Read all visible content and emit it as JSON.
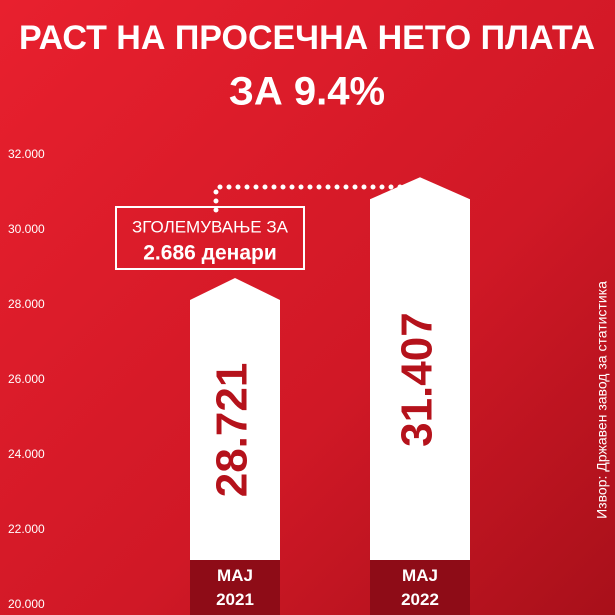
{
  "chart_data": {
    "type": "bar",
    "title": "РАСТ НА ПРОСЕЧНА НЕТО ПЛАТА",
    "subtitle": "ЗА 9.4%",
    "categories": [
      "МАЈ 2021",
      "МАЈ 2022"
    ],
    "values": [
      28721,
      31407
    ],
    "value_labels": [
      "28.721",
      "31.407"
    ],
    "color": "#ffffff",
    "label_color": "#b5121b",
    "ylim": [
      20000,
      32000
    ],
    "yticks": [
      {
        "value": 20000,
        "label": "20.000"
      },
      {
        "value": 22000,
        "label": "22.000"
      },
      {
        "value": 24000,
        "label": "24.000"
      },
      {
        "value": 26000,
        "label": "26.000"
      },
      {
        "value": 28000,
        "label": "28.000"
      },
      {
        "value": 30000,
        "label": "30.000"
      },
      {
        "value": 32000,
        "label": "32.000"
      }
    ],
    "annotation": [
      "ЗГОЛЕМУВАЊЕ ЗА",
      "2.686 денари"
    ],
    "source": "Извор: Државен завод за статистика"
  }
}
